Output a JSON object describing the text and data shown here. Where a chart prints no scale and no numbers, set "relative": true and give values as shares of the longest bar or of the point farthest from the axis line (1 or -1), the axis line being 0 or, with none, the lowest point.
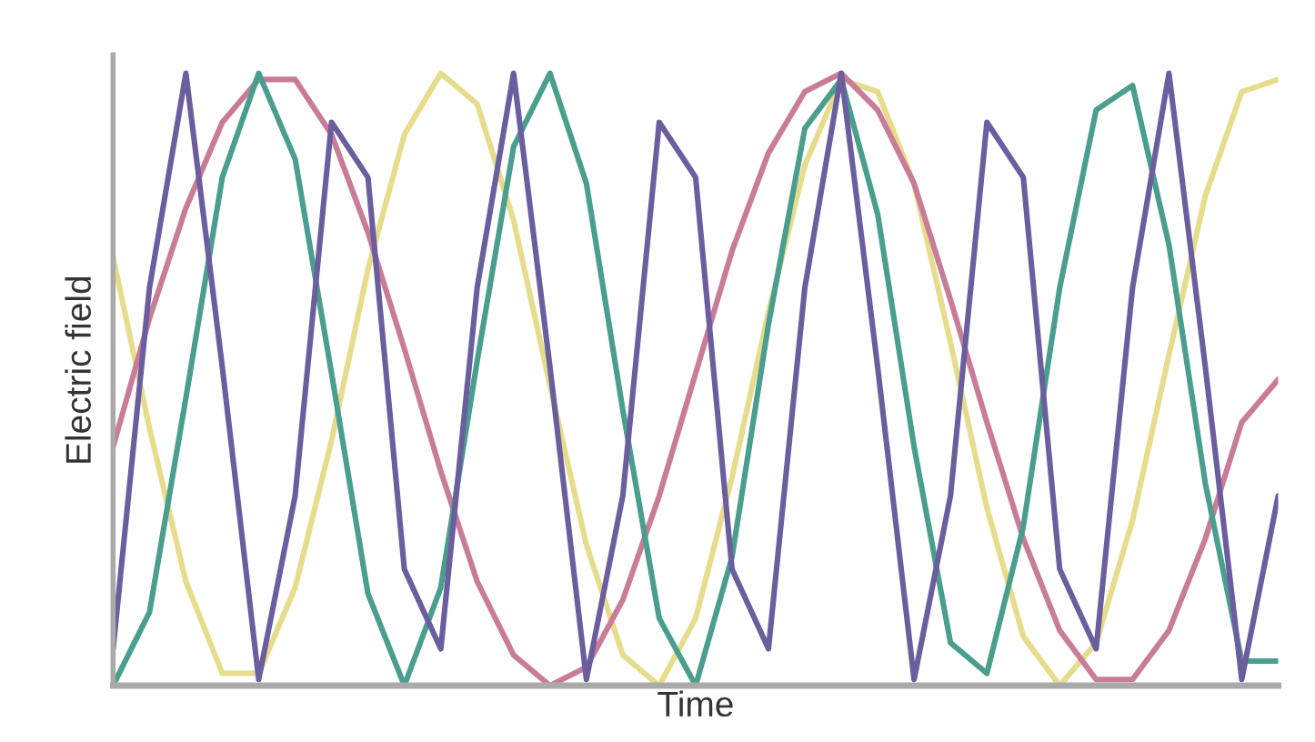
{
  "chart_data": {
    "type": "line",
    "xlabel": "Time",
    "ylabel": "Electric field",
    "relative": true,
    "tick_labels": false,
    "marker": "none",
    "line_style": "solid",
    "categories": [
      null,
      null,
      null,
      null,
      null,
      null,
      null,
      null,
      null,
      null,
      null,
      null,
      null,
      null,
      null,
      null,
      null,
      null,
      null,
      null,
      null,
      null,
      null,
      null,
      null,
      null,
      null,
      null,
      null,
      null,
      null,
      null,
      null
    ],
    "series": [
      {
        "color": "#e6dc8c",
        "values": [
          0.7,
          0.42,
          0.17,
          0.02,
          0.02,
          0.16,
          0.4,
          0.68,
          0.9,
          1.0,
          0.95,
          0.76,
          0.49,
          0.23,
          0.05,
          0.0,
          0.11,
          0.34,
          0.61,
          0.85,
          0.99,
          0.97,
          0.82,
          0.56,
          0.29,
          0.08,
          0.0,
          0.07,
          0.27,
          0.54,
          0.8,
          0.97,
          0.99
        ]
      },
      {
        "color": "#c97c98",
        "values": [
          0.39,
          0.6,
          0.78,
          0.92,
          0.99,
          0.99,
          0.9,
          0.74,
          0.55,
          0.35,
          0.17,
          0.05,
          0.0,
          0.03,
          0.14,
          0.31,
          0.51,
          0.71,
          0.87,
          0.97,
          1.0,
          0.94,
          0.82,
          0.63,
          0.43,
          0.24,
          0.09,
          0.01,
          0.01,
          0.09,
          0.24,
          0.43,
          0.5
        ]
      },
      {
        "color": "#4a9e8e",
        "values": [
          0.0,
          0.12,
          0.47,
          0.83,
          1.0,
          0.86,
          0.51,
          0.15,
          0.0,
          0.16,
          0.53,
          0.88,
          1.0,
          0.82,
          0.45,
          0.11,
          0.0,
          0.21,
          0.59,
          0.91,
          0.99,
          0.77,
          0.39,
          0.07,
          0.02,
          0.26,
          0.65,
          0.94,
          0.98,
          0.72,
          0.33,
          0.04,
          0.04
        ]
      },
      {
        "color": "#6b5e9e",
        "values": [
          0.06,
          0.65,
          1.0,
          0.52,
          0.01,
          0.31,
          0.92,
          0.83,
          0.19,
          0.06,
          0.65,
          1.0,
          0.52,
          0.01,
          0.31,
          0.92,
          0.83,
          0.19,
          0.06,
          0.65,
          1.0,
          0.52,
          0.01,
          0.31,
          0.92,
          0.83,
          0.19,
          0.06,
          0.65,
          1.0,
          0.52,
          0.01,
          0.31
        ]
      }
    ]
  }
}
